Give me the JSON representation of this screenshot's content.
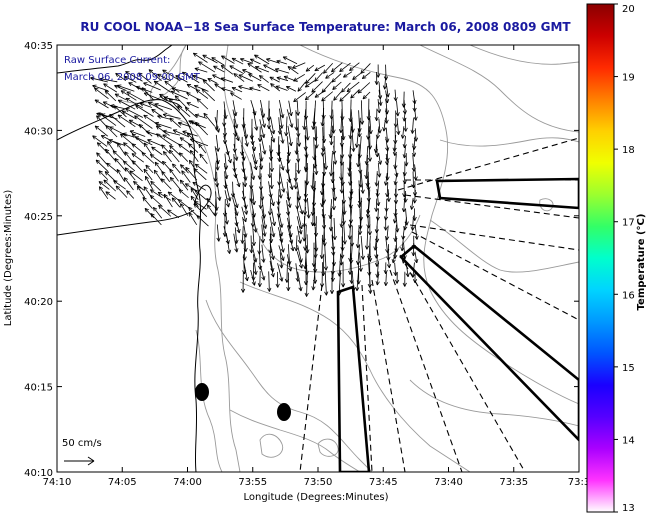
{
  "title": "RU COOL  NOAA−18  Sea Surface Temperature:  March 06, 2008 0809 GMT",
  "annotation": {
    "line1": "Raw Surface Current:",
    "line2": "March 06, 2008 09:00 GMT"
  },
  "scale_label": "50 cm/s",
  "x_axis": {
    "label": "Longitude (Degrees:Minutes)",
    "ticks": [
      "74:10",
      "74:05",
      "74:00",
      "73:55",
      "73:50",
      "73:45",
      "73:40",
      "73:35",
      "73:3"
    ]
  },
  "y_axis": {
    "label": "Latitude (Degrees:Minutes)",
    "ticks": [
      "40:35",
      "40:30",
      "40:25",
      "40:20",
      "40:15",
      "40:10"
    ]
  },
  "colorbar": {
    "label": "Temperature (°C)",
    "ticks": [
      "20",
      "19",
      "18",
      "17",
      "16",
      "15",
      "14",
      "13"
    ],
    "colors": [
      "#8b0000",
      "#cc0000",
      "#ff2a00",
      "#ff7f00",
      "#ffd000",
      "#f0ff00",
      "#9cff2e",
      "#33ff66",
      "#00ffcc",
      "#00d4ff",
      "#0099ff",
      "#0055ff",
      "#1a00ff",
      "#5500ff",
      "#aa00ff",
      "#ff33ff",
      "#ffffff"
    ]
  },
  "colors": {
    "title": "#1a1aa0",
    "coastline": "#000000",
    "bathymetry": "#9a9a9a",
    "vectors": "#000000"
  },
  "icons": {
    "buoy_markers": "filled-ellipse",
    "current_arrows": "arrow-glyph"
  }
}
